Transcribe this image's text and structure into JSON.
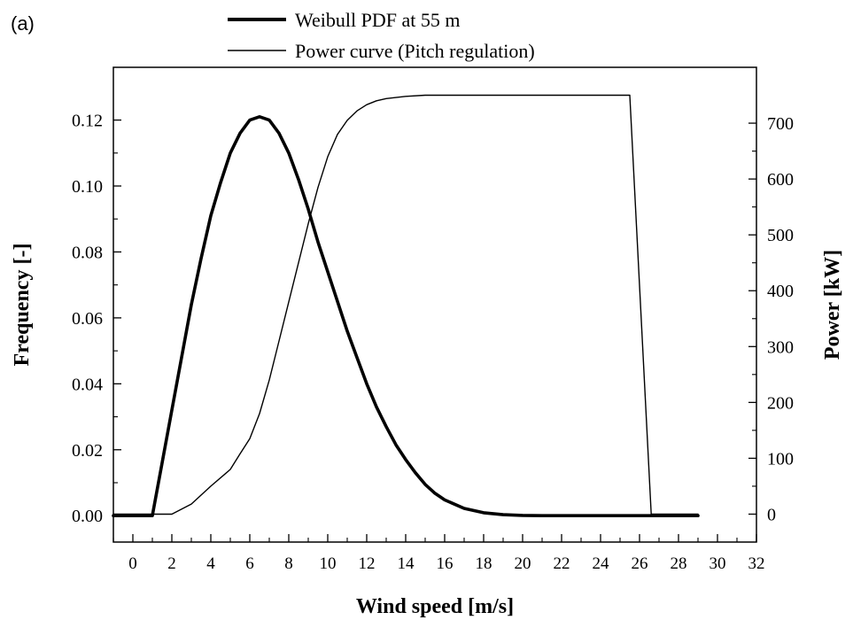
{
  "panel_label": "(a)",
  "chart_data": {
    "type": "line",
    "title": "",
    "xlabel": "Wind speed [m/s]",
    "ylabel_left": "Frequency [-]",
    "ylabel_right": "Power [kW]",
    "xlim": [
      -1,
      32
    ],
    "ylim_left": [
      -0.008,
      0.136
    ],
    "ylim_right": [
      -50,
      800
    ],
    "x_ticks": [
      0,
      2,
      4,
      6,
      8,
      10,
      12,
      14,
      16,
      18,
      20,
      22,
      24,
      26,
      28,
      30,
      32
    ],
    "x_tick_labels": [
      "0",
      "2",
      "4",
      "6",
      "8",
      "10",
      "12",
      "14",
      "16",
      "18",
      "20",
      "22",
      "24",
      "26",
      "28",
      "30",
      "32"
    ],
    "y_left_ticks": [
      0,
      0.02,
      0.04,
      0.06,
      0.08,
      0.1,
      0.12
    ],
    "y_left_tick_labels": [
      "0.00",
      "0.02",
      "0.04",
      "0.06",
      "0.08",
      "0.10",
      "0.12"
    ],
    "y_right_ticks": [
      0,
      100,
      200,
      300,
      400,
      500,
      600,
      700
    ],
    "y_right_tick_labels": [
      "0",
      "100",
      "200",
      "300",
      "400",
      "500",
      "600",
      "700"
    ],
    "legend_position": "top-center, outside",
    "grid": false,
    "series": [
      {
        "name": "Weibull PDF at 55 m",
        "axis": "left",
        "style": "thick",
        "color": "#000000",
        "x": [
          -1,
          1,
          1.5,
          2,
          2.5,
          3,
          3.5,
          4,
          4.5,
          5,
          5.5,
          6,
          6.5,
          7,
          7.5,
          8,
          8.5,
          9,
          9.5,
          10,
          10.5,
          11,
          11.5,
          12,
          12.5,
          13,
          13.5,
          14,
          14.5,
          15,
          15.5,
          16,
          17,
          18,
          19,
          20,
          21,
          22,
          24,
          26,
          28,
          29
        ],
        "y": [
          0,
          0,
          0.016,
          0.032,
          0.048,
          0.064,
          0.078,
          0.091,
          0.101,
          0.11,
          0.116,
          0.12,
          0.121,
          0.12,
          0.116,
          0.11,
          0.102,
          0.093,
          0.083,
          0.074,
          0.065,
          0.056,
          0.048,
          0.04,
          0.033,
          0.027,
          0.0215,
          0.017,
          0.013,
          0.0095,
          0.0068,
          0.0048,
          0.0022,
          0.0009,
          0.0003,
          0.0001,
          0,
          0,
          0,
          0,
          0,
          0
        ]
      },
      {
        "name": "Power curve (Pitch regulation)",
        "axis": "right",
        "style": "thin",
        "color": "#000000",
        "x": [
          -1,
          2,
          3,
          4,
          5,
          5.5,
          6,
          6.5,
          7,
          7.5,
          8,
          8.5,
          9,
          9.5,
          10,
          10.5,
          11,
          11.5,
          12,
          12.5,
          13,
          14,
          15,
          16,
          18,
          20,
          22,
          24,
          25.5,
          26.6,
          27,
          28,
          29
        ],
        "y": [
          0,
          0,
          18,
          50,
          80,
          108,
          135,
          180,
          240,
          310,
          380,
          450,
          520,
          585,
          640,
          680,
          705,
          722,
          733,
          740,
          744,
          748,
          750,
          750,
          750,
          750,
          750,
          750,
          750,
          0,
          0,
          0,
          0
        ]
      }
    ]
  }
}
